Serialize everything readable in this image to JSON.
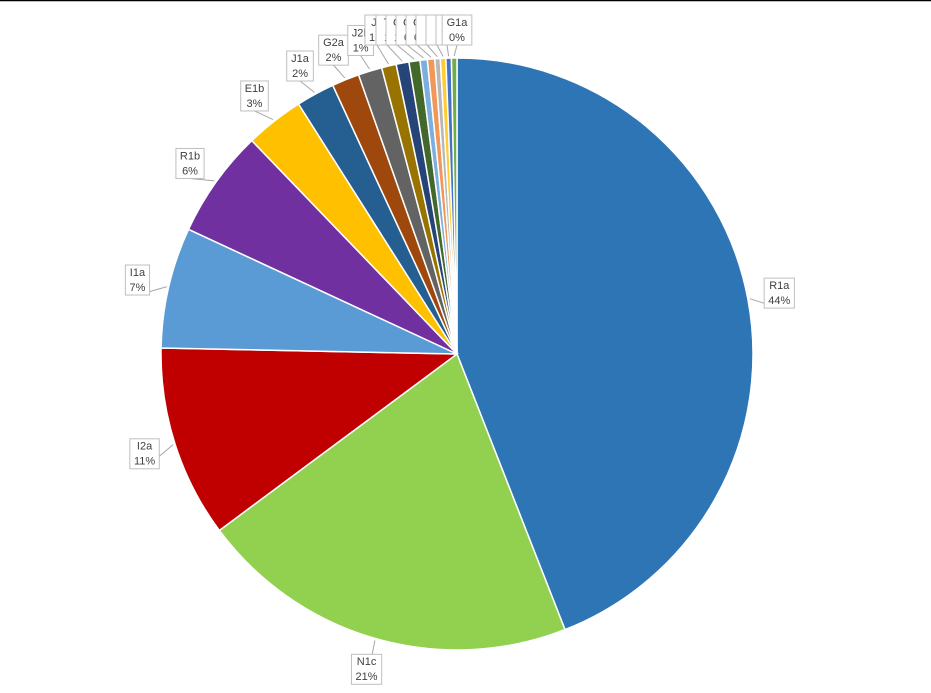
{
  "chart_data": {
    "type": "pie",
    "categories": [
      "R1a",
      "N1c",
      "I2a",
      "I1a",
      "R1b",
      "E1b",
      "J1a",
      "G2a",
      "J2b",
      "J2",
      "T",
      "C",
      "C",
      "C",
      null,
      null,
      null,
      "G1a"
    ],
    "values": [
      44.1,
      20.8,
      10.5,
      6.6,
      5.9,
      3.2,
      2.1,
      1.5,
      1.3,
      0.8,
      0.7,
      0.6,
      0.4,
      0.4,
      0.3,
      0.3,
      0.3,
      0.3
    ],
    "value_labels": [
      "44%",
      "21%",
      "11%",
      "7%",
      "6%",
      "3%",
      "2%",
      "2%",
      "1%",
      "1%",
      "1",
      "1",
      "0",
      "0",
      null,
      null,
      null,
      "0%"
    ],
    "colors": [
      "#2e75b6",
      "#92d050",
      "#c00000",
      "#5b9bd5",
      "#7030a0",
      "#ffc000",
      "#255e91",
      "#9e480e",
      "#636363",
      "#997300",
      "#264478",
      "#43682b",
      "#7cafdd",
      "#f1975a",
      "#b7b7b7",
      "#ffcd33",
      "#4472c4",
      "#70ad47"
    ]
  }
}
